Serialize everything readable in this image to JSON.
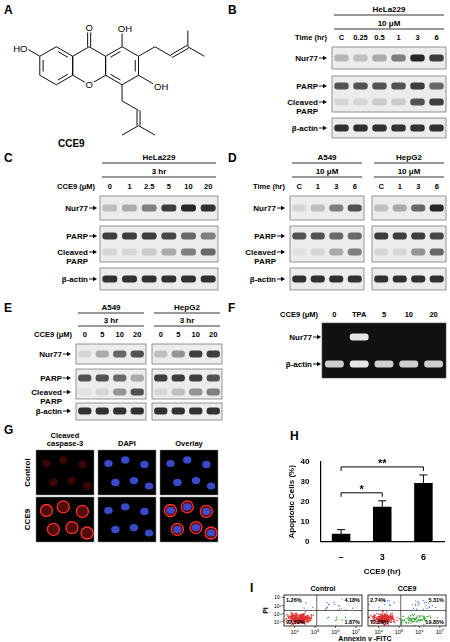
{
  "figure": {
    "panels": [
      {
        "label": "A",
        "name": "CCE9",
        "atoms": {
          "carbonyl": "O",
          "ring": "O",
          "hydroxyl_1": "OH",
          "hydroxyl_3": "OH",
          "hydroxyl_7": "HO"
        }
      },
      {
        "label": "B",
        "lane_title": "Time (hr)",
        "blots": [
          {
            "header": [
              "HeLa229",
              "10 μM"
            ],
            "lanes": [
              "C",
              "0.25",
              "0.5",
              "1",
              "3",
              "6"
            ]
          }
        ],
        "rows": [
          {
            "bands": [
              {
                "label": [
                  "Nur77"
                ],
                "intensity": [
                  [
                    0.25,
                    0.2,
                    0.3,
                    0.5,
                    0.9,
                    0.8
                  ]
                ]
              }
            ]
          },
          {
            "bands": [
              {
                "label": [
                  "PARP"
                ],
                "intensity": [
                  [
                    0.7,
                    0.7,
                    0.7,
                    0.7,
                    0.8,
                    0.6
                  ]
                ]
              },
              {
                "label": [
                  "Cleaved",
                  "PARP"
                ],
                "intensity": [
                  [
                    0.1,
                    0.1,
                    0.15,
                    0.15,
                    0.7,
                    0.8
                  ]
                ]
              }
            ]
          },
          {
            "bands": [
              {
                "label": [
                  "β-actin"
                ],
                "intensity": [
                  [
                    0.85,
                    0.85,
                    0.85,
                    0.85,
                    0.85,
                    0.85
                  ]
                ]
              }
            ]
          }
        ]
      },
      {
        "label": "C",
        "lane_title": "CCE9 (μM)",
        "blots": [
          {
            "header": [
              "HeLa229",
              "3 hr"
            ],
            "lanes": [
              "0",
              "1",
              "2.5",
              "5",
              "10",
              "20"
            ]
          }
        ],
        "rows": [
          {
            "bands": [
              {
                "label": [
                  "Nur77"
                ],
                "intensity": [
                  [
                    0.2,
                    0.3,
                    0.5,
                    0.8,
                    0.9,
                    0.85
                  ]
                ]
              }
            ]
          },
          {
            "bands": [
              {
                "label": [
                  "PARP"
                ],
                "intensity": [
                  [
                    0.8,
                    0.8,
                    0.8,
                    0.75,
                    0.6,
                    0.5
                  ]
                ]
              },
              {
                "label": [
                  "Cleaved",
                  "PARP"
                ],
                "intensity": [
                  [
                    0.1,
                    0.1,
                    0.15,
                    0.3,
                    0.5,
                    0.6
                  ]
                ]
              }
            ]
          },
          {
            "bands": [
              {
                "label": [
                  "β-actin"
                ],
                "intensity": [
                  [
                    0.85,
                    0.85,
                    0.85,
                    0.85,
                    0.85,
                    0.85
                  ]
                ]
              }
            ]
          }
        ]
      },
      {
        "label": "D",
        "lane_title": "Time (hr)",
        "blots": [
          {
            "header": [
              "A549",
              "10 μM"
            ],
            "lanes": [
              "C",
              "1",
              "3",
              "6"
            ]
          },
          {
            "header": [
              "HepG2",
              "10 μM"
            ],
            "lanes": [
              "C",
              "1",
              "3",
              "6"
            ]
          }
        ],
        "rows": [
          {
            "bands": [
              {
                "label": [
                  "Nur77"
                ],
                "intensity": [
                  [
                    0.1,
                    0.2,
                    0.5,
                    0.7
                  ],
                  [
                    0.2,
                    0.3,
                    0.6,
                    0.9
                  ]
                ]
              }
            ]
          },
          {
            "bands": [
              {
                "label": [
                  "PARP"
                ],
                "intensity": [
                  [
                    0.7,
                    0.7,
                    0.6,
                    0.6
                  ],
                  [
                    0.8,
                    0.8,
                    0.8,
                    0.75
                  ]
                ]
              },
              {
                "label": [
                  "Cleaved",
                  "PARP"
                ],
                "intensity": [
                  [
                    0.05,
                    0.1,
                    0.3,
                    0.5
                  ],
                  [
                    0.1,
                    0.1,
                    0.4,
                    0.6
                  ]
                ]
              }
            ]
          },
          {
            "bands": [
              {
                "label": [
                  "β-actin"
                ],
                "intensity": [
                  [
                    0.85,
                    0.85,
                    0.85,
                    0.85
                  ],
                  [
                    0.85,
                    0.85,
                    0.85,
                    0.85
                  ]
                ]
              }
            ]
          }
        ]
      },
      {
        "label": "E",
        "lane_title": "CCE9 (μM)",
        "blots": [
          {
            "header": [
              "A549",
              "3 hr"
            ],
            "lanes": [
              "0",
              "5",
              "10",
              "20"
            ]
          },
          {
            "header": [
              "HepG2",
              "3 hr"
            ],
            "lanes": [
              "0",
              "5",
              "10",
              "20"
            ]
          }
        ],
        "rows": [
          {
            "bands": [
              {
                "label": [
                  "Nur77"
                ],
                "intensity": [
                  [
                    0.1,
                    0.3,
                    0.6,
                    0.7
                  ],
                  [
                    0.2,
                    0.4,
                    0.8,
                    0.8
                  ]
                ]
              }
            ]
          },
          {
            "bands": [
              {
                "label": [
                  "PARP"
                ],
                "intensity": [
                  [
                    0.7,
                    0.7,
                    0.6,
                    0.3
                  ],
                  [
                    0.8,
                    0.8,
                    0.8,
                    0.7
                  ]
                ]
              },
              {
                "label": [
                  "Cleaved",
                  "PARP"
                ],
                "intensity": [
                  [
                    0.05,
                    0.1,
                    0.4,
                    0.7
                  ],
                  [
                    0.1,
                    0.2,
                    0.4,
                    0.5
                  ]
                ]
              }
            ]
          },
          {
            "bands": [
              {
                "label": [
                  "β-actin"
                ],
                "intensity": [
                  [
                    0.85,
                    0.85,
                    0.85,
                    0.85
                  ],
                  [
                    0.85,
                    0.85,
                    0.85,
                    0.85
                  ]
                ]
              }
            ]
          }
        ]
      },
      {
        "label": "F",
        "lane_title": "CCE9 (μM)",
        "blots": [
          {
            "lanes": [
              "0",
              "TPA",
              "5",
              "10",
              "20"
            ]
          }
        ],
        "rows": [
          {
            "bands": [
              {
                "label": [
                  "Nur77"
                ],
                "intensity": [
                  [
                    0,
                    0.9,
                    0,
                    0,
                    0
                  ]
                ]
              },
              {
                "label": [
                  "β-actin"
                ],
                "intensity": [
                  [
                    0.8,
                    0.9,
                    0.8,
                    0.8,
                    0.8
                  ]
                ]
              }
            ]
          }
        ]
      },
      {
        "label": "G",
        "columns": [
          [
            "Cleaved",
            "caspase-3"
          ],
          [
            "DAPI"
          ],
          [
            "Overlay"
          ]
        ],
        "rows": [
          "Control",
          "CCE9"
        ]
      },
      {
        "label": "H"
      },
      {
        "label": "I",
        "x_label": "Annexin v -FITC",
        "y_label": "PI",
        "xlim": [
          3000,
          20000000
        ],
        "ylim": [
          3000,
          20000000
        ],
        "xticks": [
          {
            "value": 10000,
            "label": "10⁴"
          },
          {
            "value": 100000,
            "label": "10⁵"
          },
          {
            "value": 1000000,
            "label": "10⁶"
          },
          {
            "value": 10000000,
            "label": "10⁷"
          }
        ],
        "yticks": [
          {
            "value": 10000,
            "label": "10⁴"
          },
          {
            "value": 100000,
            "label": "10⁵"
          },
          {
            "value": 1000000,
            "label": "10⁶"
          },
          {
            "value": 10000000,
            "label": "10⁷"
          }
        ],
        "plots": [
          {
            "title": "Control",
            "quadrants": [
              {
                "value": 1.26,
                "label": "1.26%"
              },
              {
                "value": 4.18,
                "label": "4.18%"
              },
              {
                "value": 92.69,
                "label": "92.69%"
              },
              {
                "value": 1.87,
                "label": "1.87%"
              }
            ]
          },
          {
            "title": "CCE9",
            "quadrants": [
              {
                "value": 2.74,
                "label": "2.74%"
              },
              {
                "value": 5.31,
                "label": "5.31%"
              },
              {
                "value": 72.28,
                "label": "72.28%"
              },
              {
                "value": 19.85,
                "label": "19.85%"
              }
            ]
          }
        ]
      }
    ]
  },
  "chart_data": {
    "type": "bar",
    "categories": [
      "–",
      "3",
      "6"
    ],
    "values": [
      4,
      17.5,
      29.5
    ],
    "errors": [
      2,
      3,
      4
    ],
    "color": "#000000",
    "x_label": "CCE9 (hr)",
    "y_label": "Apoptotic Cells (%)",
    "ylim": [
      0,
      40
    ],
    "yticks": [
      0,
      10,
      20,
      30,
      40
    ],
    "grid": false,
    "annotations": [
      {
        "from": "–",
        "to": "3",
        "text": "*"
      },
      {
        "from": "–",
        "to": "6",
        "text": "**"
      }
    ]
  }
}
